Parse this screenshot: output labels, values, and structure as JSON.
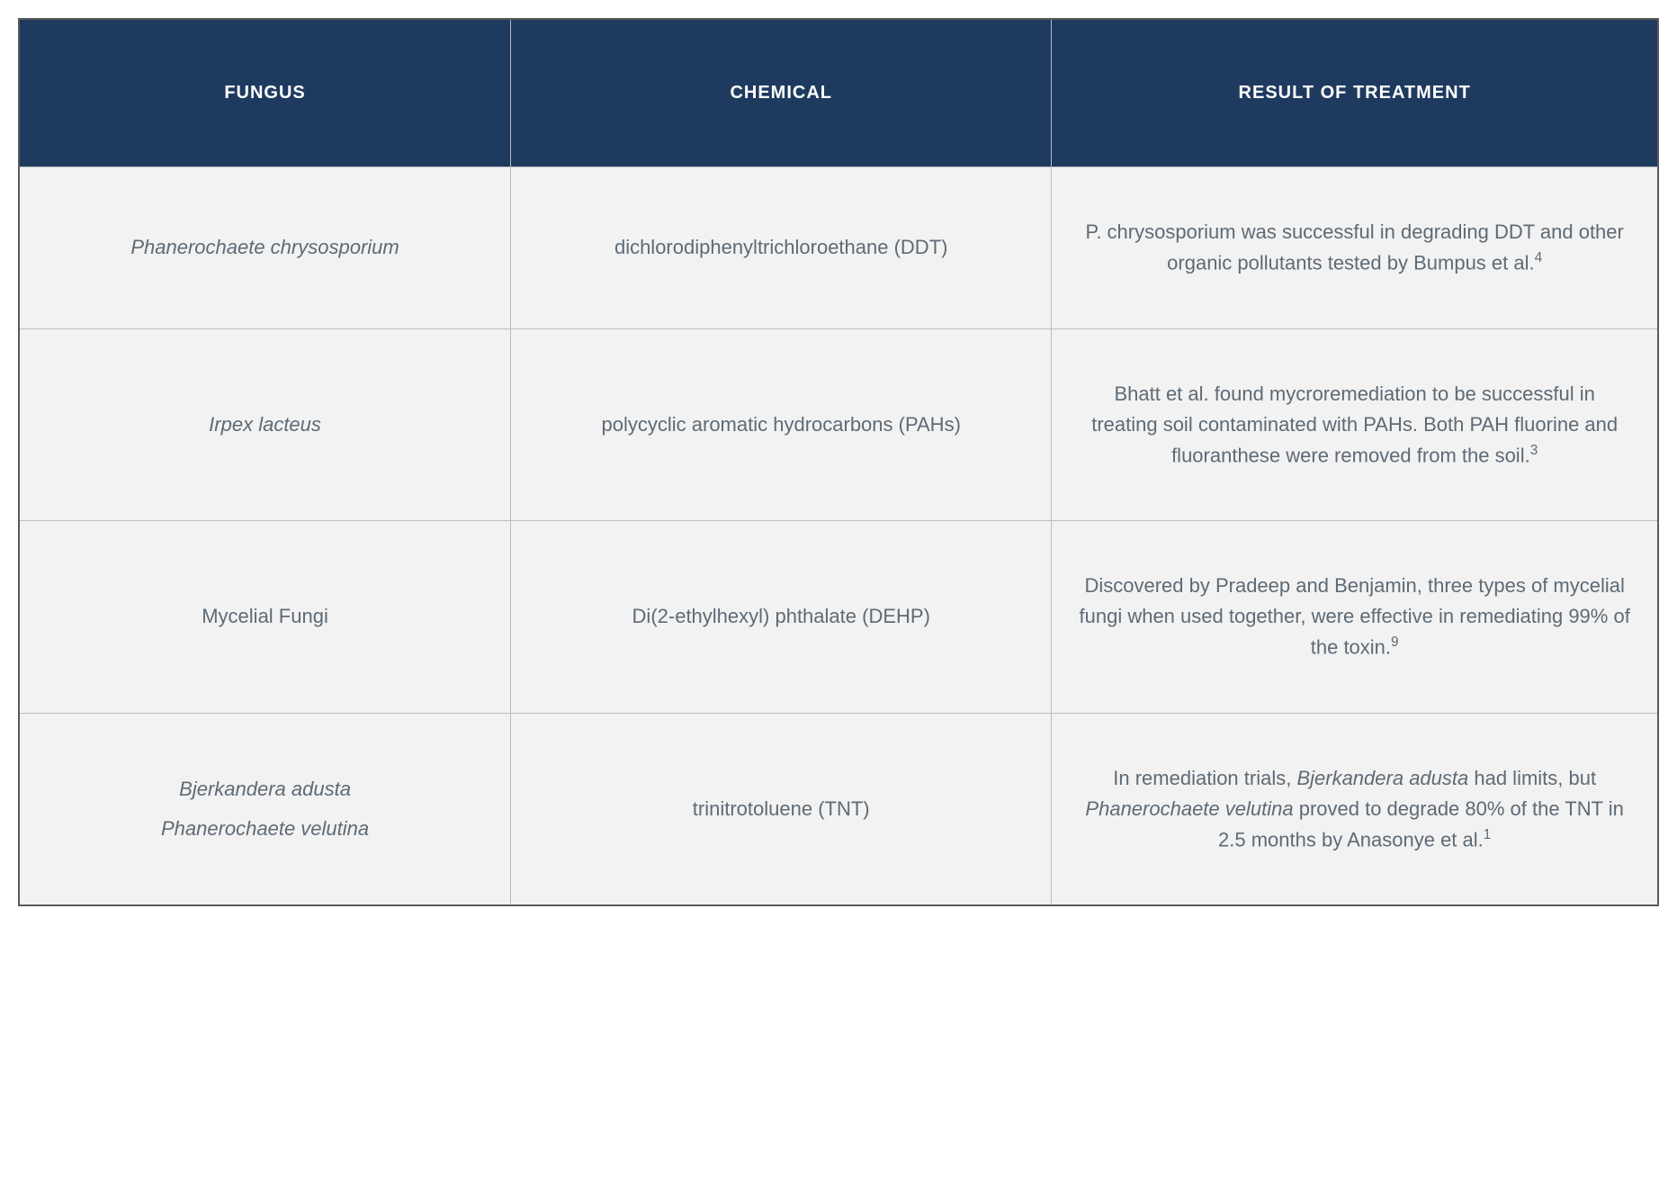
{
  "table": {
    "columns": [
      "FUNGUS",
      "CHEMICAL",
      "RESULT OF TREATMENT"
    ],
    "header_bg": "#1f3a5f",
    "header_text_color": "#ffffff",
    "header_fontsize": 20,
    "cell_bg": "#f2f2f2",
    "cell_text_color": "#5e6a75",
    "cell_fontsize": 22,
    "border_color": "#b9bdc2",
    "outer_border_color": "#5a5a5a",
    "column_widths_pct": [
      30,
      33,
      37
    ],
    "rows": [
      {
        "fungus": [
          {
            "text": "Phanerochaete chrysosporium",
            "italic": true
          }
        ],
        "chemical": "dichlorodiphenyltrichloroethane (DDT)",
        "result_parts": [
          {
            "text": "P. chrysosporium was successful in degrading DDT and other organic pollutants tested by Bumpus et al."
          },
          {
            "sup": "4"
          }
        ]
      },
      {
        "fungus": [
          {
            "text": "Irpex lacteus",
            "italic": true
          }
        ],
        "chemical": "polycyclic aromatic hydrocarbons (PAHs)",
        "result_parts": [
          {
            "text": "Bhatt et al. found mycroremediation to be successful in treating soil contaminated with PAHs. Both PAH fluorine and fluoranthese were removed from the soil."
          },
          {
            "sup": "3"
          }
        ]
      },
      {
        "fungus": [
          {
            "text": "Mycelial Fungi",
            "italic": false
          }
        ],
        "chemical": "Di(2-ethylhexyl) phthalate (DEHP)",
        "result_parts": [
          {
            "text": "Discovered by Pradeep and Benjamin, three types of mycelial fungi when used together, were effective in remediating 99% of the toxin."
          },
          {
            "sup": "9"
          }
        ]
      },
      {
        "fungus": [
          {
            "text": "Bjerkandera adusta",
            "italic": true
          },
          {
            "text": "Phanerochaete velutina",
            "italic": true
          }
        ],
        "chemical": "trinitrotoluene (TNT)",
        "result_parts": [
          {
            "text": "In remediation trials, "
          },
          {
            "text": "Bjerkandera adusta",
            "italic": true
          },
          {
            "text": " had limits, but "
          },
          {
            "text": "Phanerochaete velutina",
            "italic": true
          },
          {
            "text": " proved to degrade 80% of the TNT in 2.5 months by Anasonye et al."
          },
          {
            "sup": "1"
          }
        ]
      }
    ]
  }
}
